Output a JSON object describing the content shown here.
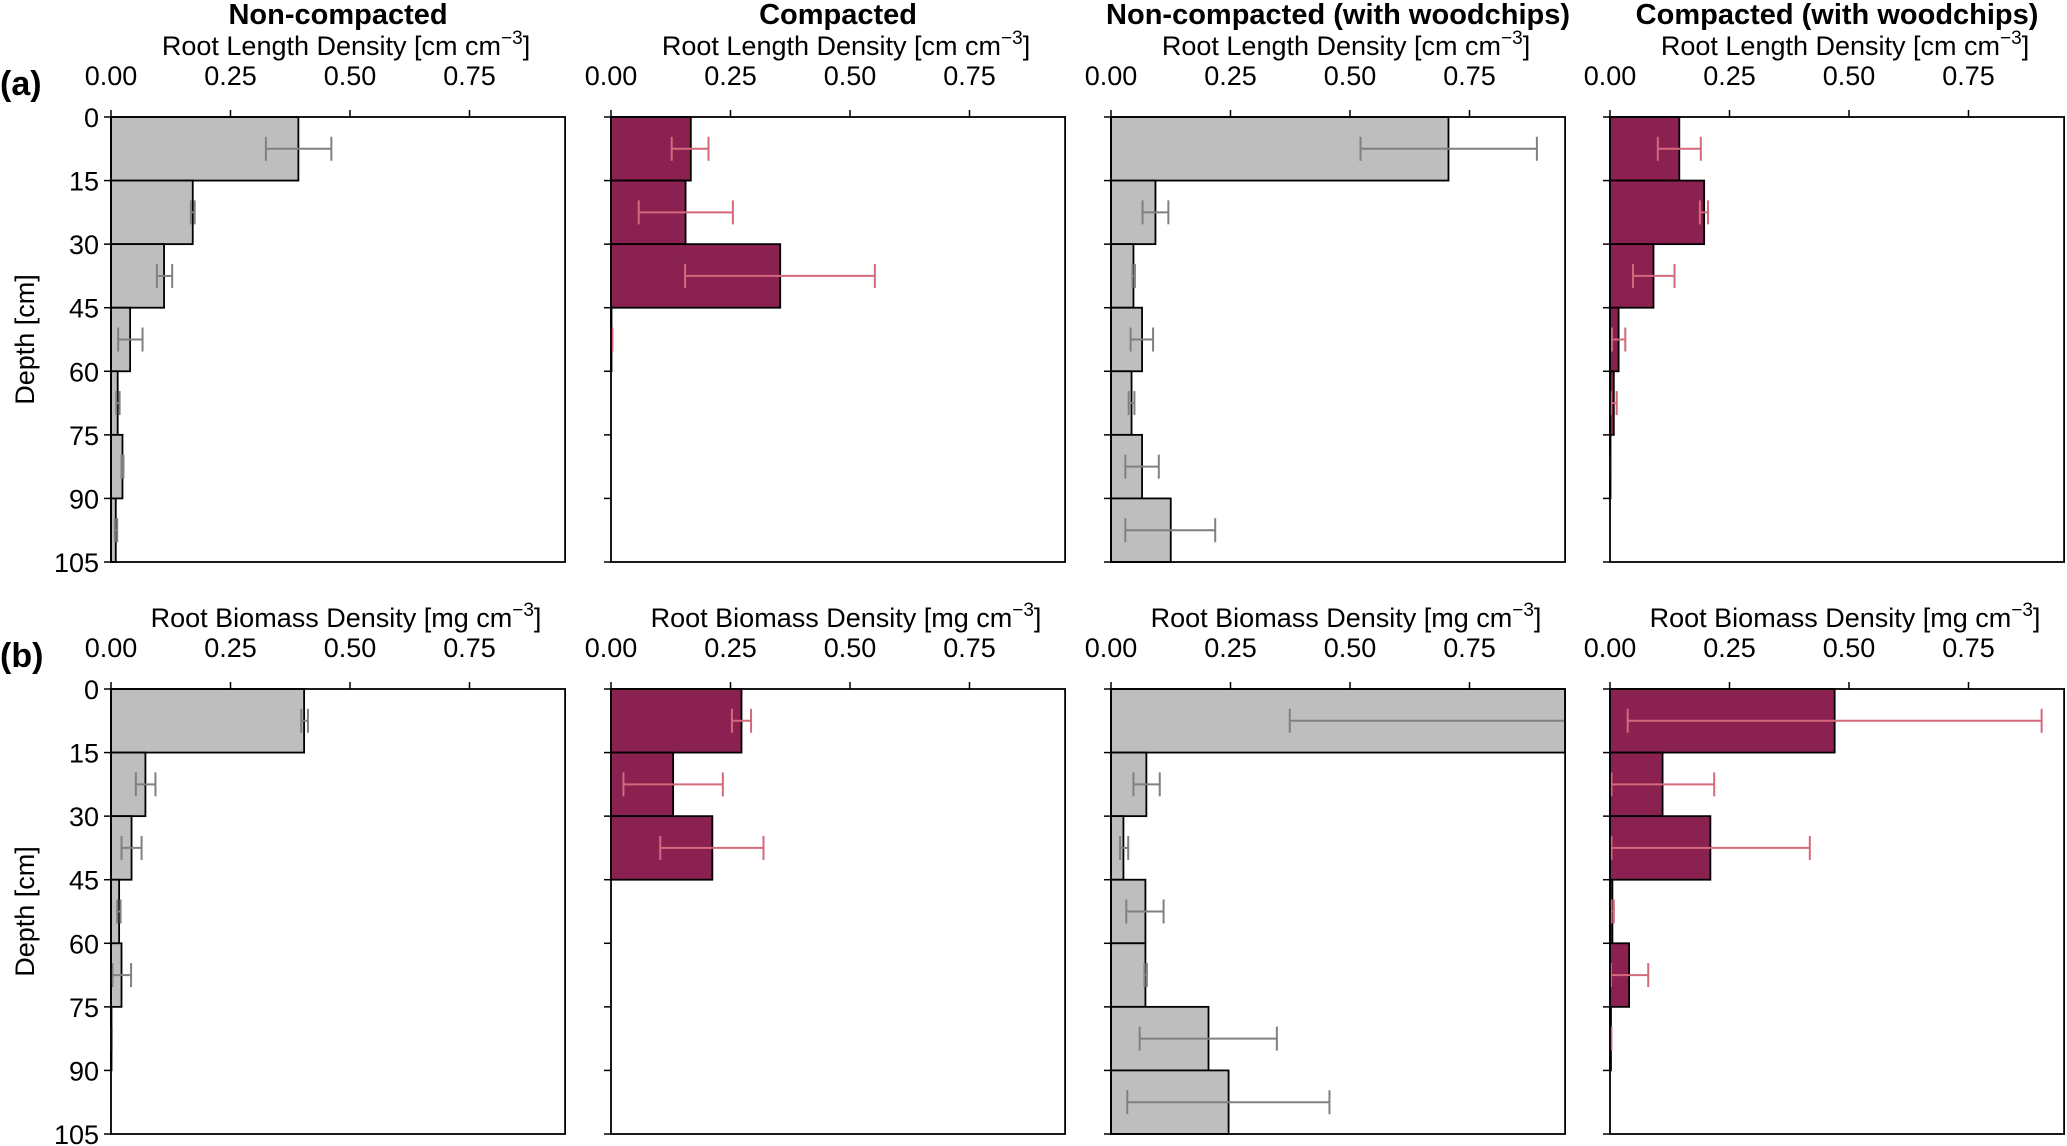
{
  "chart_data": {
    "type": "bar",
    "orientation": "horizontal",
    "layout": "2 rows x 4 columns of small multiples",
    "columns": [
      "Non-compacted",
      "Compacted",
      "Non-compacted (with woodchips)",
      "Compacted (with woodchips)"
    ],
    "row_labels": [
      "(a)",
      "(b)"
    ],
    "depth_axis": {
      "label": "Depth [cm]",
      "ticks": [
        0,
        15,
        30,
        45,
        60,
        75,
        90,
        105
      ],
      "range": [
        0,
        105
      ],
      "inverted": true
    },
    "depth_bins": [
      "0-15",
      "15-30",
      "30-45",
      "45-60",
      "60-75",
      "75-90",
      "90-105"
    ],
    "x_ticks": [
      "0.00",
      "0.25",
      "0.50",
      "0.75"
    ],
    "x_tick_values": [
      0,
      0.25,
      0.5,
      0.75
    ],
    "xlim": [
      0,
      0.95
    ],
    "grid": false,
    "colors": {
      "non_compacted_bar": "#bebebe",
      "non_compacted_error": "#808080",
      "compacted_bar": "#8a2151",
      "compacted_error": "#d4697c",
      "edge": "#000000"
    },
    "rows": [
      {
        "label": "(a)",
        "xlabel": "Root Length Density [cm cm",
        "xlabel_sup": "−3",
        "xlabel_close": "]",
        "panels": [
          {
            "title": "Non-compacted",
            "style": "non_compacted",
            "values": [
              0.392,
              0.171,
              0.111,
              0.04,
              0.014,
              0.024,
              0.01
            ],
            "err_low": [
              0.324,
              0.167,
              0.096,
              0.015,
              0.011,
              0.022,
              0.008
            ],
            "err_high": [
              0.461,
              0.175,
              0.128,
              0.066,
              0.018,
              0.026,
              0.013
            ]
          },
          {
            "title": "Compacted",
            "style": "compacted",
            "values": [
              0.167,
              0.156,
              0.354,
              0.001,
              0,
              0,
              0
            ],
            "err_low": [
              0.127,
              0.058,
              0.155,
              0.0,
              0,
              0,
              0
            ],
            "err_high": [
              0.204,
              0.255,
              0.552,
              0.003,
              0,
              0,
              0
            ]
          },
          {
            "title": "Non-compacted (with woodchips)",
            "style": "non_compacted",
            "values": [
              0.706,
              0.093,
              0.047,
              0.065,
              0.043,
              0.065,
              0.125
            ],
            "err_low": [
              0.522,
              0.066,
              0.045,
              0.041,
              0.037,
              0.03,
              0.03
            ],
            "err_high": [
              0.891,
              0.12,
              0.05,
              0.088,
              0.049,
              0.1,
              0.218
            ]
          },
          {
            "title": "Compacted (with woodchips)",
            "style": "compacted",
            "values": [
              0.145,
              0.197,
              0.091,
              0.018,
              0.008,
              0.001,
              0
            ],
            "err_low": [
              0.1,
              0.188,
              0.048,
              0.004,
              0.002,
              0.0,
              0
            ],
            "err_high": [
              0.19,
              0.205,
              0.135,
              0.032,
              0.014,
              0.002,
              0
            ]
          }
        ]
      },
      {
        "label": "(b)",
        "xlabel": "Root Biomass Density [mg cm",
        "xlabel_sup": "−3",
        "xlabel_close": "]",
        "panels": [
          {
            "title": "Non-compacted",
            "style": "non_compacted",
            "values": [
              0.404,
              0.072,
              0.043,
              0.017,
              0.022,
              0.001,
              0
            ],
            "err_low": [
              0.398,
              0.052,
              0.022,
              0.013,
              0.003,
              0.0,
              0
            ],
            "err_high": [
              0.412,
              0.093,
              0.064,
              0.02,
              0.042,
              0.002,
              0
            ]
          },
          {
            "title": "Compacted",
            "style": "compacted",
            "values": [
              0.273,
              0.13,
              0.212,
              0,
              0,
              0,
              0
            ],
            "err_low": [
              0.253,
              0.026,
              0.103,
              0,
              0,
              0,
              0
            ],
            "err_high": [
              0.293,
              0.234,
              0.319,
              0,
              0,
              0,
              0
            ]
          },
          {
            "title": "Non-compacted (with woodchips)",
            "style": "non_compacted",
            "values": [
              1.0,
              0.074,
              0.026,
              0.072,
              0.072,
              0.204,
              0.246
            ],
            "err_low": [
              0.374,
              0.047,
              0.019,
              0.032,
              0.07,
              0.06,
              0.034
            ],
            "err_high": [
              1.6,
              0.102,
              0.036,
              0.11,
              0.075,
              0.347,
              0.457
            ],
            "note": "first bar and its upper error exceed the axis limit (clipped)"
          },
          {
            "title": "Compacted (with woodchips)",
            "style": "compacted",
            "values": [
              0.47,
              0.11,
              0.21,
              0.005,
              0.04,
              0.002,
              0
            ],
            "err_low": [
              0.037,
              0.003,
              0.003,
              0.003,
              0.002,
              0.001,
              0
            ],
            "err_high": [
              0.903,
              0.218,
              0.418,
              0.008,
              0.08,
              0.003,
              0
            ]
          }
        ]
      }
    ]
  }
}
